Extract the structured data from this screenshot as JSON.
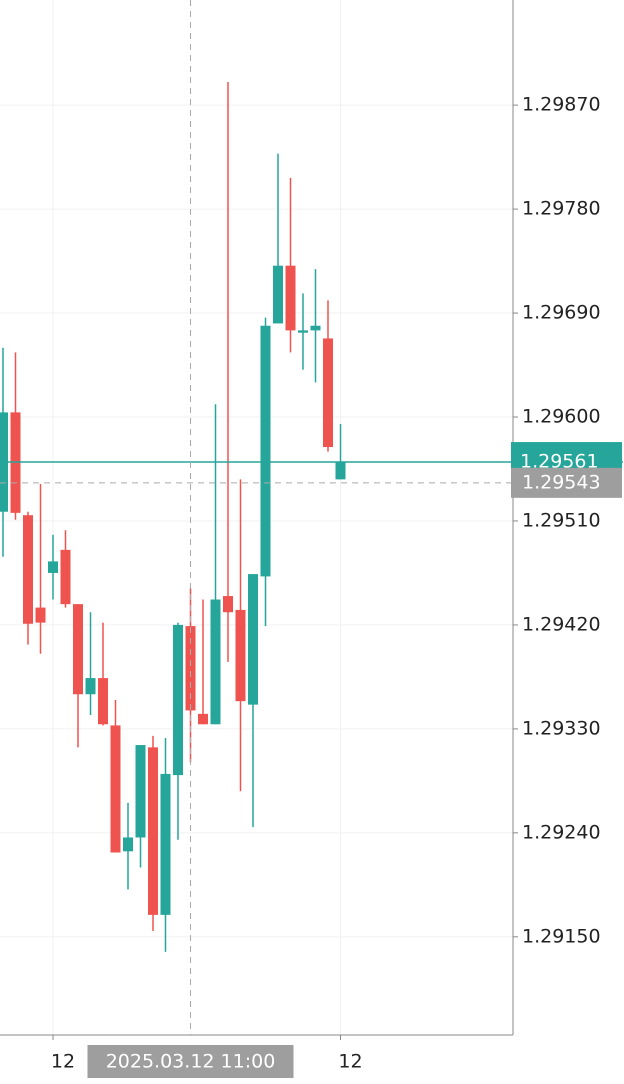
{
  "chart_data": {
    "type": "candlestick",
    "categories": [
      null,
      null,
      null,
      null,
      "12",
      null,
      null,
      null,
      null,
      null,
      null,
      null,
      null,
      null,
      null,
      "2025.03.12 11:00",
      null,
      null,
      null,
      null,
      null,
      null,
      null,
      null,
      null,
      null,
      null,
      "12"
    ],
    "open": [
      1.29518,
      1.29604,
      1.29515,
      1.29435,
      1.29465,
      1.29485,
      1.29438,
      1.2936,
      1.29374,
      1.29333,
      1.29224,
      1.29236,
      1.29314,
      1.29169,
      1.2929,
      1.29419,
      1.29343,
      1.29334,
      1.29445,
      1.29433,
      1.29351,
      1.29462,
      1.29681,
      1.29731,
      1.29673,
      1.29675,
      1.29668,
      1.29546
    ],
    "high": [
      1.2966,
      1.29656,
      1.29518,
      1.29542,
      1.29498,
      1.29502,
      1.29438,
      1.29431,
      1.29422,
      1.29355,
      1.29266,
      1.29316,
      1.29324,
      1.29322,
      1.29422,
      1.29452,
      1.29442,
      1.29611,
      1.2989,
      1.29546,
      1.29464,
      1.29686,
      1.29828,
      1.29807,
      1.29707,
      1.29728,
      1.29701,
      1.29594
    ],
    "low": [
      1.29479,
      1.29511,
      1.29403,
      1.29395,
      1.29442,
      1.29435,
      1.29314,
      1.29342,
      1.29333,
      1.29223,
      1.29191,
      1.2921,
      1.29155,
      1.29137,
      1.29234,
      1.29301,
      1.29334,
      1.29334,
      1.29388,
      1.29276,
      1.29245,
      1.29419,
      1.29681,
      1.29656,
      1.29641,
      1.2963,
      1.2957,
      1.29546
    ],
    "close": [
      1.29604,
      1.29517,
      1.29421,
      1.29422,
      1.29475,
      1.29438,
      1.2936,
      1.29374,
      1.29334,
      1.29223,
      1.29236,
      1.29316,
      1.29169,
      1.29291,
      1.2942,
      1.29346,
      1.29334,
      1.29442,
      1.29431,
      1.29354,
      1.29464,
      1.29679,
      1.29731,
      1.29675,
      1.29675,
      1.29679,
      1.29574,
      1.29561
    ],
    "up_color": "#26a69a",
    "down_color": "#ef5350",
    "ylim": [
      1.29065,
      1.29961
    ],
    "yticks": [
      {
        "value": 1.2915,
        "label": "1.29150"
      },
      {
        "value": 1.2924,
        "label": "1.29240"
      },
      {
        "value": 1.2933,
        "label": "1.29330"
      },
      {
        "value": 1.2942,
        "label": "1.29420"
      },
      {
        "value": 1.2951,
        "label": "1.29510"
      },
      {
        "value": 1.296,
        "label": "1.29600"
      },
      {
        "value": 1.2969,
        "label": "1.29690"
      },
      {
        "value": 1.2978,
        "label": "1.29780"
      },
      {
        "value": 1.2987,
        "label": "1.29870"
      }
    ],
    "grid": true,
    "last_price": {
      "value": 1.29561,
      "label": "1.29561"
    },
    "crosshair": {
      "value": 1.29543,
      "label": "1.29543"
    }
  }
}
